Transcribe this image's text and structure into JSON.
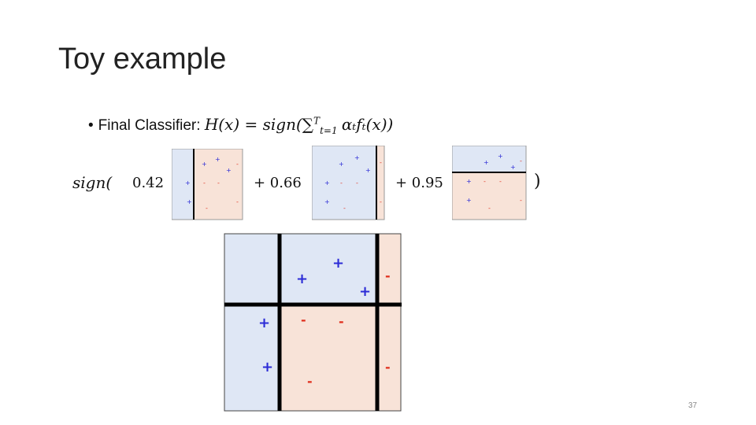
{
  "slide": {
    "title": "Toy example",
    "bullet_label": "Final Classifier:",
    "formula": "H(x) = sign(∑",
    "formula_sup": "T",
    "formula_sub": "t=1",
    "formula_tail": "αₜfₜ(x))",
    "page_number": "37"
  },
  "equation": {
    "sign_open": "sign(",
    "coef_1": "0.42",
    "plus_coef_2": "+ 0.66",
    "plus_coef_3": "+ 0.95",
    "close": ")"
  },
  "colors": {
    "positive_region": "#dfe7f5",
    "negative_region": "#f8e3d8",
    "positive_mark": "#2b2bd6",
    "negative_mark": "#e0301e",
    "boundary": "#000000"
  },
  "marks": {
    "plus": "+",
    "minus": "-"
  }
}
